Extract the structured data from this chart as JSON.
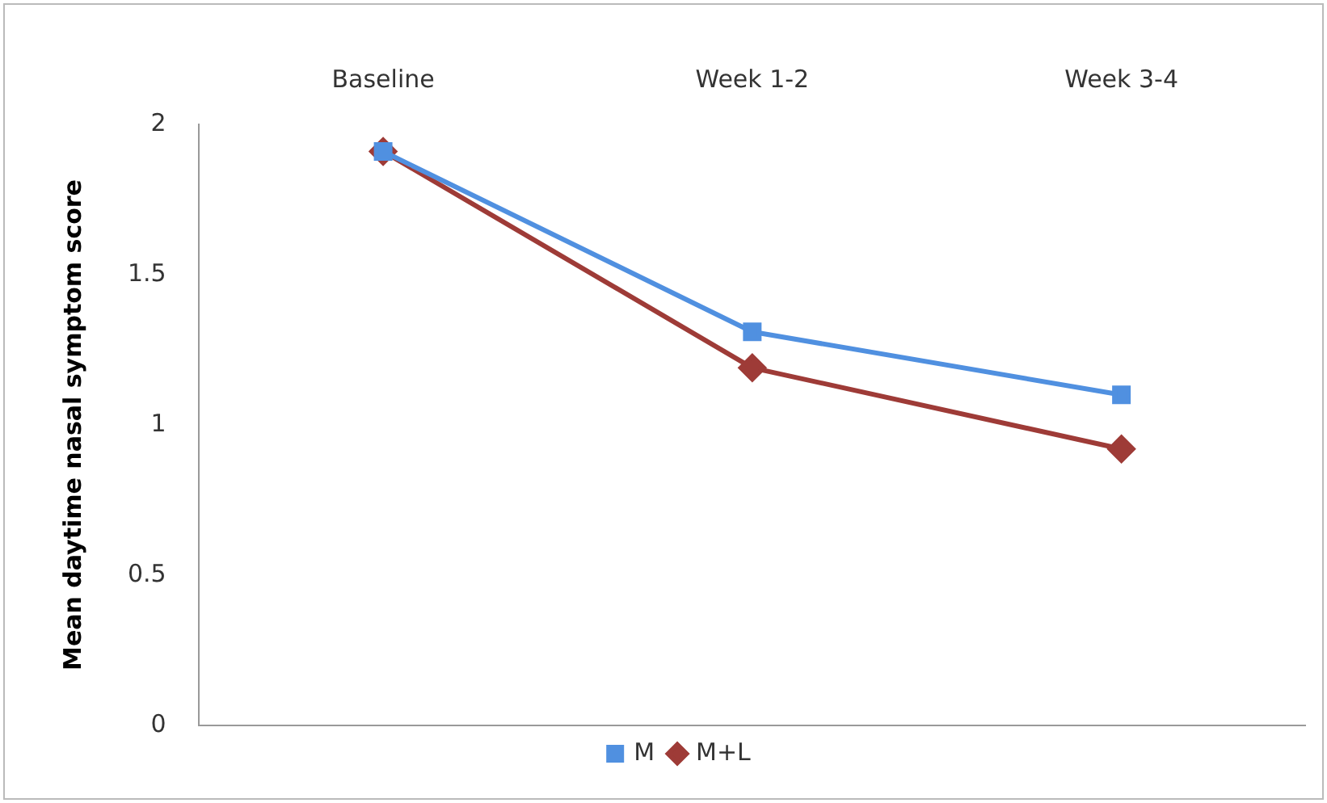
{
  "chart_data": {
    "type": "line",
    "ylabel": "Mean daytime nasal symptom score",
    "categories": [
      "Baseline",
      "Week 1-2",
      "Week 3-4"
    ],
    "series": [
      {
        "name": "M+L",
        "color": "#9e3b37",
        "values": [
          1.91,
          1.19,
          0.92
        ],
        "marker": "diamond"
      },
      {
        "name": "M",
        "color": "#5090e0",
        "values": [
          1.91,
          1.31,
          1.1
        ],
        "marker": "square"
      }
    ],
    "ylim": [
      0,
      2
    ],
    "yticks": [
      0,
      0.5,
      1,
      1.5,
      2
    ],
    "grid": false,
    "legend": "bottom",
    "line_style": "solid"
  }
}
